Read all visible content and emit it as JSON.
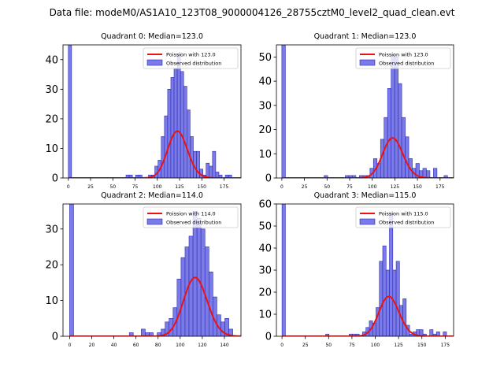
{
  "suptitle": "Data file: modeM0/AS1A10_123T08_9000004126_28755cztM0_level2_quad_clean.evt",
  "legend_labels": {
    "observed": "Observed distribution"
  },
  "colors": {
    "hist_fill": "#7b7be8",
    "hist_edge": "#2b2bb5",
    "poisson": "#ee1111"
  },
  "chart_data": [
    {
      "type": "bar",
      "title": "Quadrant 0: Median=123.0",
      "poisson_label": "Poission with 123.0",
      "poisson_mean": 123.0,
      "poisson_n": 440,
      "bin_width": 3.6,
      "xlim": [
        -6,
        194
      ],
      "ylim": [
        0,
        45
      ],
      "xticks": [
        "0",
        "25",
        "50",
        "75",
        "100",
        "125",
        "150",
        "175"
      ],
      "xtick_values": [
        0,
        25,
        50,
        75,
        100,
        125,
        150,
        175
      ],
      "yticks": [
        "0",
        "10",
        "20",
        "30",
        "40"
      ],
      "ytick_values": [
        0,
        10,
        20,
        30,
        40
      ],
      "bins": [
        [
          0,
          45
        ],
        [
          64.8,
          1
        ],
        [
          68.4,
          1
        ],
        [
          75.6,
          1
        ],
        [
          79.2,
          1
        ],
        [
          90,
          1
        ],
        [
          93.6,
          1
        ],
        [
          97.2,
          4
        ],
        [
          100.8,
          6
        ],
        [
          104.4,
          14
        ],
        [
          108,
          21
        ],
        [
          111.6,
          30
        ],
        [
          115.2,
          34
        ],
        [
          118.8,
          37
        ],
        [
          122.4,
          42
        ],
        [
          126,
          36
        ],
        [
          129.6,
          31
        ],
        [
          133.2,
          23
        ],
        [
          136.8,
          14
        ],
        [
          140.4,
          9
        ],
        [
          144,
          9
        ],
        [
          147.6,
          3
        ],
        [
          151.2,
          1
        ],
        [
          154.8,
          5
        ],
        [
          158.4,
          4
        ],
        [
          162,
          9
        ],
        [
          165.6,
          2
        ],
        [
          169.2,
          1
        ],
        [
          176.4,
          1
        ],
        [
          180,
          1
        ]
      ]
    },
    {
      "type": "bar",
      "title": "Quadrant 1: Median=123.0",
      "poisson_label": "Poission with 123.0",
      "poisson_mean": 123.0,
      "poisson_n": 460,
      "bin_width": 3.9,
      "xlim": [
        -6,
        190
      ],
      "ylim": [
        0,
        55
      ],
      "xticks": [
        "0",
        "25",
        "50",
        "75",
        "100",
        "125",
        "150",
        "175"
      ],
      "xtick_values": [
        0,
        25,
        50,
        75,
        100,
        125,
        150,
        175
      ],
      "yticks": [
        "0",
        "10",
        "20",
        "30",
        "40",
        "50"
      ],
      "ytick_values": [
        0,
        10,
        20,
        30,
        40,
        50
      ],
      "bins": [
        [
          0,
          55
        ],
        [
          46.8,
          1
        ],
        [
          70.2,
          1
        ],
        [
          74.1,
          1
        ],
        [
          78,
          1
        ],
        [
          85.8,
          1
        ],
        [
          89.7,
          1
        ],
        [
          93.6,
          1
        ],
        [
          97.5,
          4
        ],
        [
          101.4,
          8
        ],
        [
          105.3,
          6
        ],
        [
          109.2,
          16
        ],
        [
          113.1,
          25
        ],
        [
          117,
          37
        ],
        [
          120.9,
          51
        ],
        [
          124.8,
          50
        ],
        [
          128.7,
          39
        ],
        [
          132.6,
          25
        ],
        [
          136.5,
          17
        ],
        [
          140.4,
          8
        ],
        [
          144.3,
          4
        ],
        [
          148.2,
          6
        ],
        [
          152.1,
          3
        ],
        [
          156,
          4
        ],
        [
          159.9,
          3
        ],
        [
          167.7,
          4
        ],
        [
          179.4,
          1
        ]
      ]
    },
    {
      "type": "bar",
      "title": "Quadrant 2: Median=114.0",
      "poisson_label": "Poission with 114.0",
      "poisson_mean": 114.0,
      "poisson_n": 440,
      "bin_width": 3.6,
      "xlim": [
        -6,
        155
      ],
      "ylim": [
        0,
        37
      ],
      "xticks": [
        "0",
        "20",
        "40",
        "60",
        "80",
        "100",
        "120",
        "140"
      ],
      "xtick_values": [
        0,
        20,
        40,
        60,
        80,
        100,
        120,
        140
      ],
      "yticks": [
        "0",
        "10",
        "20",
        "30"
      ],
      "ytick_values": [
        0,
        10,
        20,
        30
      ],
      "bins": [
        [
          0,
          37
        ],
        [
          54,
          1
        ],
        [
          64.8,
          2
        ],
        [
          68.4,
          1
        ],
        [
          72,
          1
        ],
        [
          79.2,
          1
        ],
        [
          82.8,
          2
        ],
        [
          86.4,
          4
        ],
        [
          90,
          5
        ],
        [
          93.6,
          8
        ],
        [
          97.2,
          16
        ],
        [
          100.8,
          22
        ],
        [
          104.4,
          25
        ],
        [
          108,
          28
        ],
        [
          111.6,
          35
        ],
        [
          115.2,
          33
        ],
        [
          118.8,
          30
        ],
        [
          122.4,
          25
        ],
        [
          126,
          18
        ],
        [
          129.6,
          11
        ],
        [
          133.2,
          6
        ],
        [
          136.8,
          4
        ],
        [
          140.4,
          5
        ],
        [
          144,
          2
        ]
      ]
    },
    {
      "type": "bar",
      "title": "Quadrant 3: Median=115.0",
      "poisson_label": "Poission with 115.0",
      "poisson_mean": 115.0,
      "poisson_n": 485,
      "bin_width": 3.6,
      "xlim": [
        -6,
        184
      ],
      "ylim": [
        0,
        60
      ],
      "xticks": [
        "0",
        "25",
        "50",
        "75",
        "100",
        "125",
        "150",
        "175"
      ],
      "xtick_values": [
        0,
        25,
        50,
        75,
        100,
        125,
        150,
        175
      ],
      "yticks": [
        "0",
        "10",
        "20",
        "30",
        "40",
        "50",
        "60"
      ],
      "ytick_values": [
        0,
        10,
        20,
        30,
        40,
        50,
        60
      ],
      "bins": [
        [
          0,
          60
        ],
        [
          46.8,
          1
        ],
        [
          72,
          1
        ],
        [
          75.6,
          1
        ],
        [
          79.2,
          1
        ],
        [
          86.4,
          2
        ],
        [
          90,
          4
        ],
        [
          93.6,
          7
        ],
        [
          97.2,
          6
        ],
        [
          100.8,
          13
        ],
        [
          104.4,
          34
        ],
        [
          108,
          41
        ],
        [
          111.6,
          30
        ],
        [
          115.2,
          56
        ],
        [
          118.8,
          30
        ],
        [
          122.4,
          34
        ],
        [
          126,
          14
        ],
        [
          129.6,
          17
        ],
        [
          133.2,
          5
        ],
        [
          136.8,
          1
        ],
        [
          140.4,
          2
        ],
        [
          144,
          3
        ],
        [
          147.6,
          3
        ],
        [
          151.2,
          1
        ],
        [
          158.4,
          3
        ],
        [
          162,
          1
        ],
        [
          165.6,
          2
        ],
        [
          172.8,
          2
        ]
      ]
    }
  ]
}
